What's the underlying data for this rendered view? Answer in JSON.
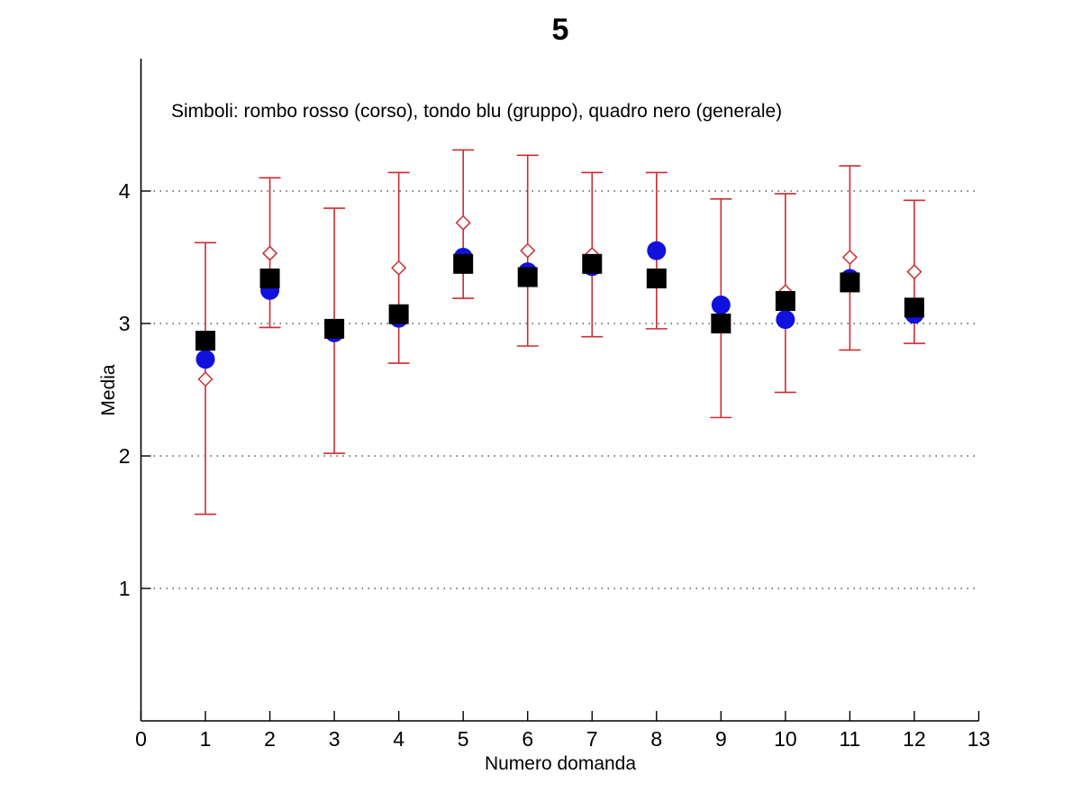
{
  "figure": {
    "background": "#ffffff",
    "text_color": "#000000"
  },
  "chart_data": {
    "type": "scatter",
    "title": "5",
    "annotation": "Simboli: rombo rosso (corso), tondo blu (gruppo), quadro nero (generale)",
    "xlabel": "Numero domanda",
    "ylabel": "Media",
    "xlim": [
      0,
      13
    ],
    "ylim": [
      0,
      5
    ],
    "xticks": [
      0,
      1,
      2,
      3,
      4,
      5,
      6,
      7,
      8,
      9,
      10,
      11,
      12,
      13
    ],
    "yticks": [
      1,
      2,
      3,
      4
    ],
    "grid": "horizontal dotted lines at each y tick",
    "legend_position": "text annotation inside plot, top-left",
    "x": [
      1,
      2,
      3,
      4,
      5,
      6,
      7,
      8,
      9,
      10,
      11,
      12
    ],
    "series": [
      {
        "name": "corso",
        "marker": "open-diamond",
        "color": "#cc2d33",
        "values": [
          2.58,
          3.53,
          2.94,
          3.42,
          3.76,
          3.55,
          3.52,
          3.55,
          3.12,
          3.24,
          3.5,
          3.39
        ],
        "err_top": [
          3.61,
          4.1,
          3.87,
          4.14,
          4.31,
          4.27,
          4.14,
          4.14,
          3.94,
          3.98,
          4.19,
          3.93
        ],
        "err_bottom": [
          1.56,
          2.97,
          2.02,
          2.7,
          3.19,
          2.83,
          2.9,
          2.96,
          2.29,
          2.48,
          2.8,
          2.85
        ]
      },
      {
        "name": "gruppo",
        "marker": "filled-circle",
        "color": "#1111dd",
        "values": [
          2.73,
          3.25,
          2.93,
          3.04,
          3.5,
          3.39,
          3.43,
          3.55,
          3.14,
          3.03,
          3.34,
          3.07
        ]
      },
      {
        "name": "generale",
        "marker": "filled-square",
        "color": "#000000",
        "values": [
          2.87,
          3.34,
          2.96,
          3.07,
          3.45,
          3.35,
          3.45,
          3.34,
          3.0,
          3.17,
          3.31,
          3.12
        ]
      }
    ]
  }
}
